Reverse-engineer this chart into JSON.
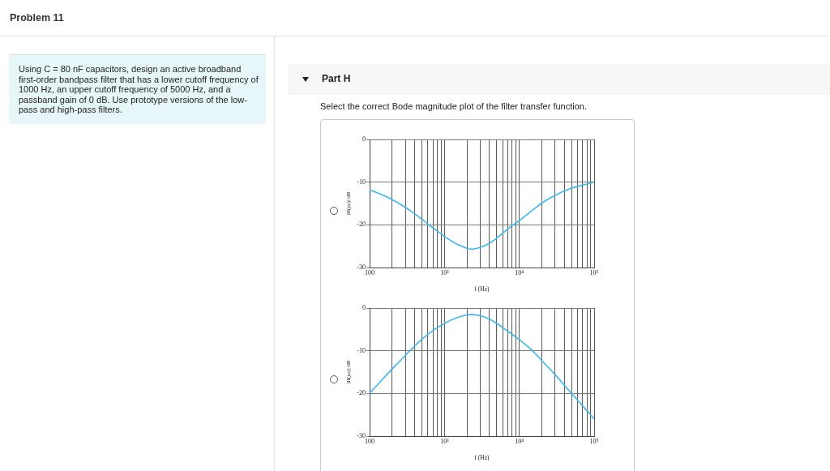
{
  "chart_data": [
    {
      "type": "other",
      "title": "Problem 11",
      "annotations": [
        "Using C = 80 nF capacitors, design an active broadband first-order bandpass filter that has a lower cutoff frequency of 1000 Hz, an upper cutoff frequency of 5000 Hz, and a passband gain of 0 dB. Use prototype versions of the low-pass and high-pass filters."
      ]
    },
    {
      "type": "line",
      "title": "Part H",
      "subtitle": "Select the correct Bode magnitude plot of the filter transfer function.",
      "xlabel": "f (Hz)",
      "ylabel": "|H(jω)| dB",
      "color": "#3db8ec",
      "x": [
        100,
        150,
        200,
        300,
        400,
        500,
        600,
        700,
        900,
        1000,
        1500,
        2000,
        2300,
        3000,
        4000,
        5000,
        7000,
        10000,
        15000,
        20000,
        30000,
        50000,
        70000,
        100000
      ],
      "values": [
        -11.8,
        -13.0,
        -14.1,
        -15.9,
        -17.4,
        -18.7,
        -19.8,
        -20.7,
        -22.1,
        -22.7,
        -24.6,
        -25.5,
        -25.7,
        -25.3,
        -24.3,
        -23.1,
        -21.0,
        -19.0,
        -16.6,
        -14.9,
        -13.1,
        -11.4,
        -10.7,
        -10.0
      ],
      "xlim": [
        100,
        100000
      ],
      "ylim": [
        -30,
        0
      ],
      "xticks": [
        100,
        {
          "value": 200,
          "label": null
        },
        {
          "value": 300,
          "label": null
        },
        {
          "value": 400,
          "label": null
        },
        {
          "value": 500,
          "label": null
        },
        {
          "value": 600,
          "label": null
        },
        {
          "value": 700,
          "label": null
        },
        {
          "value": 800,
          "label": null
        },
        {
          "value": 900,
          "label": null
        },
        {
          "value": 1000,
          "label": "10³"
        },
        {
          "value": 2000,
          "label": null
        },
        {
          "value": 3000,
          "label": null
        },
        {
          "value": 4000,
          "label": null
        },
        {
          "value": 5000,
          "label": null
        },
        {
          "value": 6000,
          "label": null
        },
        {
          "value": 7000,
          "label": null
        },
        {
          "value": 8000,
          "label": null
        },
        {
          "value": 9000,
          "label": null
        },
        {
          "value": 10000,
          "label": "10⁴"
        },
        {
          "value": 20000,
          "label": null
        },
        {
          "value": 30000,
          "label": null
        },
        {
          "value": 40000,
          "label": null
        },
        {
          "value": 50000,
          "label": null
        },
        {
          "value": 60000,
          "label": null
        },
        {
          "value": 70000,
          "label": null
        },
        {
          "value": 80000,
          "label": null
        },
        {
          "value": 90000,
          "label": null
        },
        {
          "value": 100000,
          "label": "10⁵"
        }
      ],
      "yticks": [
        0,
        -10,
        -20,
        -30
      ],
      "log": "x",
      "grid": true,
      "marker": "none",
      "line_style": "solid"
    },
    {
      "type": "line",
      "xlabel": "f (Hz)",
      "ylabel": "|H(jω)| dB",
      "color": "#3db8ec",
      "x": [
        100,
        150,
        200,
        300,
        400,
        500,
        700,
        1000,
        1500,
        2000,
        2300,
        3000,
        4000,
        5000,
        7000,
        10000,
        15000,
        20000,
        30000,
        50000,
        70000,
        100000
      ],
      "values": [
        -20.0,
        -16.6,
        -14.3,
        -11.1,
        -8.9,
        -7.3,
        -5.3,
        -3.6,
        -2.2,
        -1.6,
        -1.5,
        -1.8,
        -2.6,
        -3.6,
        -5.4,
        -7.4,
        -10.0,
        -12.3,
        -15.6,
        -20.0,
        -22.9,
        -25.9
      ],
      "xlim": [
        100,
        100000
      ],
      "ylim": [
        -30,
        0
      ],
      "xticks": [
        100,
        {
          "value": 200,
          "label": null
        },
        {
          "value": 300,
          "label": null
        },
        {
          "value": 400,
          "label": null
        },
        {
          "value": 500,
          "label": null
        },
        {
          "value": 600,
          "label": null
        },
        {
          "value": 700,
          "label": null
        },
        {
          "value": 800,
          "label": null
        },
        {
          "value": 900,
          "label": null
        },
        {
          "value": 1000,
          "label": "10³"
        },
        {
          "value": 2000,
          "label": null
        },
        {
          "value": 3000,
          "label": null
        },
        {
          "value": 4000,
          "label": null
        },
        {
          "value": 5000,
          "label": null
        },
        {
          "value": 6000,
          "label": null
        },
        {
          "value": 7000,
          "label": null
        },
        {
          "value": 8000,
          "label": null
        },
        {
          "value": 9000,
          "label": null
        },
        {
          "value": 10000,
          "label": "10⁴"
        },
        {
          "value": 20000,
          "label": null
        },
        {
          "value": 30000,
          "label": null
        },
        {
          "value": 40000,
          "label": null
        },
        {
          "value": 50000,
          "label": null
        },
        {
          "value": 60000,
          "label": null
        },
        {
          "value": 70000,
          "label": null
        },
        {
          "value": 80000,
          "label": null
        },
        {
          "value": 90000,
          "label": null
        },
        {
          "value": 100000,
          "label": "10⁵"
        }
      ],
      "yticks": [
        0,
        -10,
        -20,
        -30
      ],
      "log": "x",
      "grid": true,
      "marker": "none",
      "line_style": "solid"
    }
  ]
}
